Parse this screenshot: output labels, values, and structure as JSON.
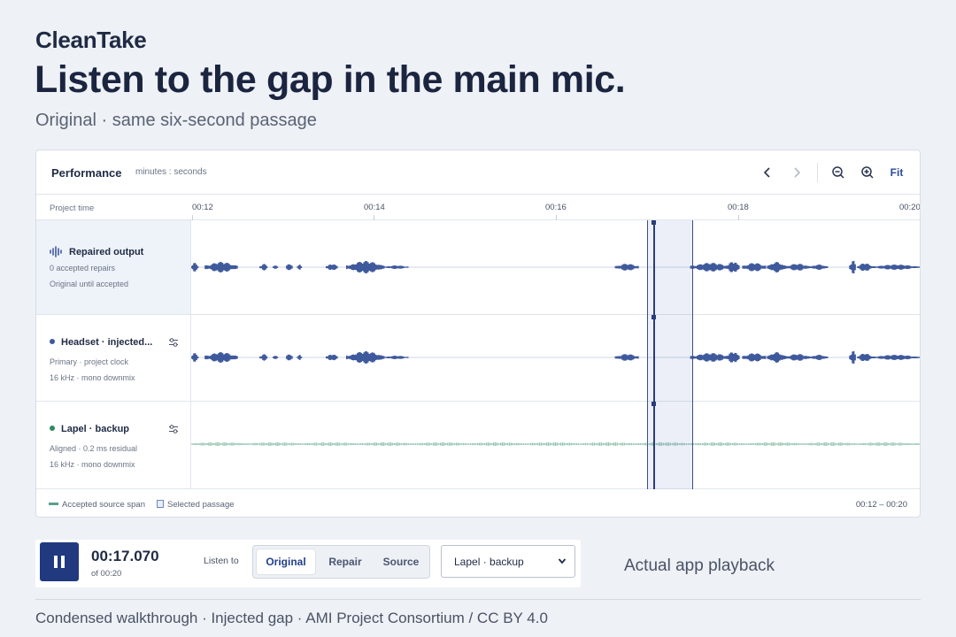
{
  "app": {
    "brand": "CleanTake"
  },
  "hero": {
    "headline": "Listen to the gap in the main mic.",
    "subtitle": "Original · same six-second passage"
  },
  "panel": {
    "title": "Performance",
    "units": "minutes : seconds",
    "toolbar": {
      "prev_icon": "chevron-left-icon",
      "next_icon": "chevron-right-icon",
      "zoom_out_icon": "zoom-out-icon",
      "zoom_in_icon": "zoom-in-icon",
      "fit_label": "Fit"
    },
    "ruler": {
      "label": "Project time",
      "ticks": [
        "00:12",
        "00:14",
        "00:16",
        "00:18",
        "00:20"
      ]
    },
    "tracks": [
      {
        "name": "Repaired output",
        "meta1": "0 accepted repairs",
        "meta2": "Original until accepted",
        "icon": "waveform-icon",
        "color": "#3f5a9c"
      },
      {
        "name": "Headset · injected...",
        "meta1": "Primary · project clock",
        "meta2": "16 kHz · mono downmix",
        "icon": "sliders-icon",
        "color": "#3f5a9c"
      },
      {
        "name": "Lapel · backup",
        "meta1": "Aligned · 0.2 ms residual",
        "meta2": "16 kHz · mono downmix",
        "icon": "sliders-icon",
        "color": "#2f8a66"
      }
    ],
    "legend": {
      "accepted": "Accepted source span",
      "selected": "Selected passage",
      "range": "00:12 – 00:20"
    }
  },
  "transport": {
    "play_state_icon": "pause-icon",
    "time": "00:17.070",
    "duration": "of 00:20",
    "listen_label": "Listen to",
    "modes": [
      "Original",
      "Repair",
      "Source"
    ],
    "active_mode": "Original",
    "source_select": "Lapel · backup"
  },
  "note": "Actual app playback",
  "footer": "Condensed walkthrough · Injected gap · AMI Project Consortium / CC BY 4.0",
  "colors": {
    "accent": "#20397f",
    "wave_primary": "#3f5a9c",
    "wave_lapel": "#2f8a66"
  }
}
